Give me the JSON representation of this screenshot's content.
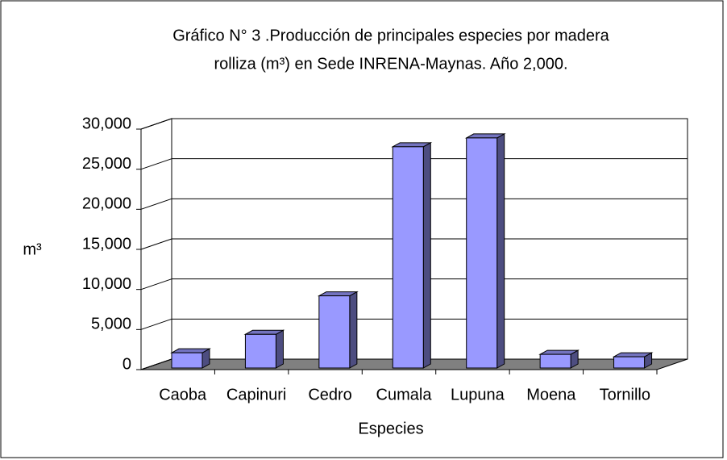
{
  "chart_data": {
    "type": "bar3d",
    "title_lines": [
      "Gráfico N° 3 .Producción de principales especies por madera",
      "rolliza (m³) en Sede INRENA-Maynas. Año 2,000."
    ],
    "x_label": "Especies",
    "y_label": "m³",
    "categories": [
      "Caoba",
      "Capinuri",
      "Cedro",
      "Cumala",
      "Lupuna",
      "Moena",
      "Tornillo"
    ],
    "values": [
      1900,
      4200,
      9000,
      27600,
      28700,
      1700,
      1400
    ],
    "color": "#9999ff",
    "ylim": [
      0,
      30000
    ],
    "yticks": [
      0,
      {
        "value": 5000,
        "label": "5,000"
      },
      {
        "value": 10000,
        "label": "10,000"
      },
      {
        "value": 15000,
        "label": "15,000"
      },
      {
        "value": 20000,
        "label": "20,000"
      },
      {
        "value": 25000,
        "label": "25,000"
      },
      {
        "value": 30000,
        "label": "30,000"
      }
    ],
    "grid": true
  }
}
